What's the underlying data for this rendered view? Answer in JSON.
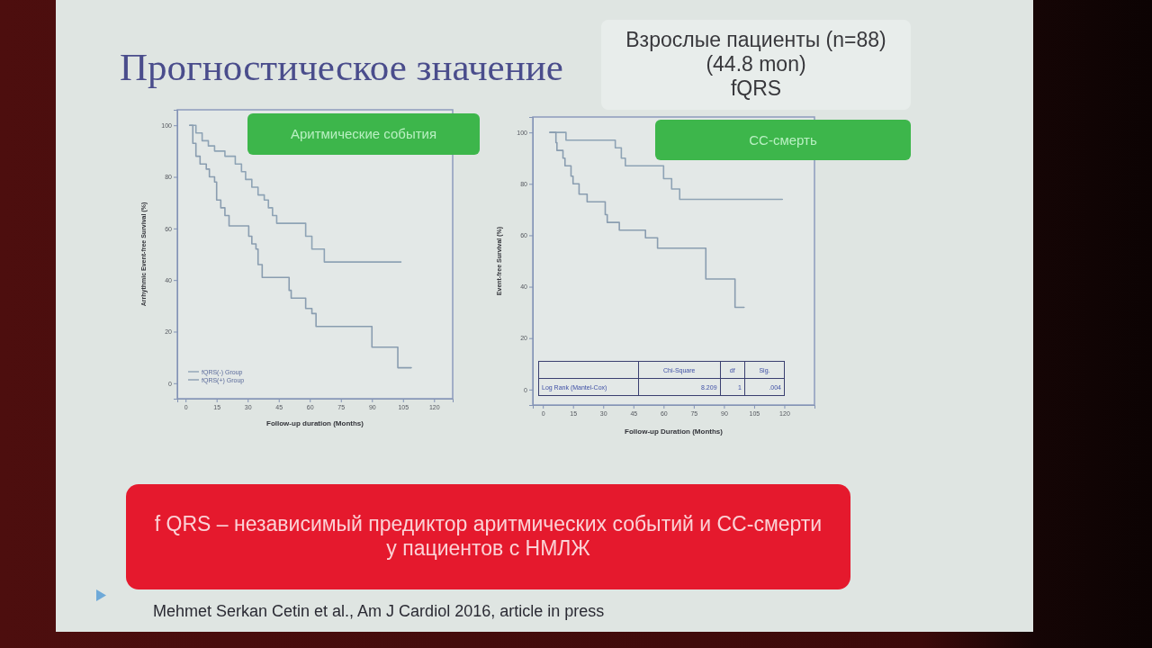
{
  "chart_data": [
    {
      "type": "step",
      "title": "Аритмические события",
      "xlabel": "Follow-up duration (Months)",
      "ylabel": "Arrhythmic Event-free Survival (%)",
      "xlim": [
        -4,
        129
      ],
      "xticks": [
        0,
        15,
        30,
        45,
        60,
        75,
        90,
        105,
        120
      ],
      "ylim": [
        -6,
        106
      ],
      "yticks": [
        0,
        20,
        40,
        60,
        80,
        100
      ],
      "legend": "bottom left",
      "series": [
        {
          "name": "fQRS(-) Group",
          "color": "#8ea3b5",
          "x": [
            2,
            5,
            8,
            11,
            14,
            19,
            24,
            27,
            29,
            32,
            35,
            38,
            40,
            42,
            44,
            58,
            61,
            67,
            104
          ],
          "values": [
            100,
            97,
            94,
            92,
            90,
            88,
            85,
            82,
            79,
            76,
            73,
            71,
            68,
            65,
            62,
            57,
            52,
            47,
            47
          ]
        },
        {
          "name": "fQRS(+) Group",
          "color": "#8a9db0",
          "x": [
            2,
            3.5,
            5,
            7,
            10,
            11.5,
            14,
            15,
            17,
            19,
            21,
            30.5,
            32,
            34,
            35,
            37,
            50,
            51,
            58,
            61,
            63,
            90,
            102.5,
            109
          ],
          "values": [
            100,
            93,
            88,
            85,
            83,
            80,
            78,
            71,
            68,
            65,
            61,
            57,
            54,
            52,
            46,
            41,
            36,
            33,
            29,
            27,
            22,
            14,
            6,
            6
          ]
        }
      ],
      "annotations": [
        "Прогностическое значение",
        "Взрослые пациенты (n=88)",
        "(44.8 mon)",
        "fQRS",
        "f QRS – независимый предиктор аритмических событий и СС-смерти у пациентов с НМЛЖ",
        "Mehmet Serkan Cetin et al., Am J Cardiol 2016, article in press"
      ]
    },
    {
      "type": "step",
      "title": "СС-смерть",
      "xlabel": "Follow-up Duration (Months)",
      "ylabel": "Event-free Survival (%)",
      "xlim": [
        -5,
        135
      ],
      "xticks": [
        0,
        15,
        30,
        45,
        60,
        75,
        90,
        105,
        120
      ],
      "ylim": [
        -6,
        106
      ],
      "yticks": [
        0,
        20,
        40,
        60,
        80,
        100
      ],
      "series": [
        {
          "color": "#8ea3b5",
          "x": [
            3.5,
            11.5,
            36,
            39,
            41,
            60,
            64,
            68,
            119
          ],
          "values": [
            100,
            97,
            94,
            90,
            87,
            82,
            78,
            74,
            74
          ]
        },
        {
          "color": "#8a9db0",
          "x": [
            3.5,
            6.5,
            7,
            10,
            11,
            14,
            15,
            18,
            22,
            31,
            32,
            38,
            51,
            57,
            81,
            95.5,
            100
          ],
          "values": [
            100,
            96,
            93,
            90,
            87,
            83,
            80,
            76,
            73,
            68,
            65,
            62,
            59,
            55,
            43,
            32,
            32
          ]
        }
      ],
      "annotations": [
        "Chi-Square",
        "df",
        "Sig.",
        "Log Rank (Mantel-Cox)",
        "8.209",
        "1",
        ".004"
      ]
    }
  ]
}
